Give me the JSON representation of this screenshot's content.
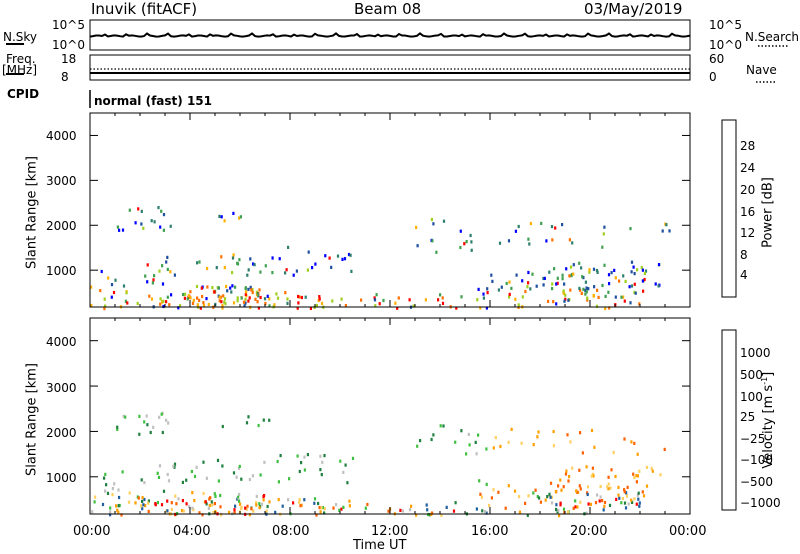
{
  "header": {
    "station": "Inuvik (fitACF)",
    "beam": "Beam 08",
    "date": "03/May/2019"
  },
  "summary": {
    "nsky_label": "N.Sky",
    "nsearch_label": "N.Search",
    "nsky_ticks": [
      "10^5",
      "10^0"
    ],
    "nsearch_ticks": [
      "10^5",
      "10^0"
    ],
    "freq_label": "Freq.",
    "freq_unit": "[MHz]",
    "freq_ticks": [
      "18",
      "8"
    ],
    "nave_label": "Nave",
    "nave_ticks": [
      "60",
      "0"
    ],
    "cpid_label": "CPID",
    "cpid_value": "normal (fast) 151"
  },
  "colors": {
    "power_scale": [
      "#0000ff",
      "#1f4f9f",
      "#2f7f6f",
      "#3fa04f",
      "#9fd020",
      "#ffb000",
      "#ff7000",
      "#ff0000"
    ],
    "velocity_scale": [
      "#ff0000",
      "#ff6000",
      "#ffa000",
      "#ffd060",
      "#c0c0c0",
      "#40c040",
      "#208040",
      "#2060a0",
      "#0000ff"
    ]
  },
  "chart_data": [
    {
      "type": "heatmap",
      "panel": "power",
      "ylabel": "Slant Range [km]",
      "yticks": [
        "1000",
        "2000",
        "3000",
        "4000"
      ],
      "ylim": [
        180,
        4500
      ],
      "xticks": [
        "00:00",
        "04:00",
        "08:00",
        "12:00",
        "16:00",
        "20:00",
        "00:00"
      ],
      "colorbar_label": "Power [dB]",
      "colorbar_ticks": [
        "4",
        "8",
        "12",
        "16",
        "20",
        "24",
        "28"
      ]
    },
    {
      "type": "heatmap",
      "panel": "velocity",
      "ylabel": "Slant Range [km]",
      "yticks": [
        "1000",
        "2000",
        "3000",
        "4000"
      ],
      "ylim": [
        180,
        4500
      ],
      "xticks": [
        "00:00",
        "04:00",
        "08:00",
        "12:00",
        "16:00",
        "20:00",
        "00:00"
      ],
      "xlabel": "Time UT",
      "colorbar_label": "Velocity [m s",
      "colorbar_label_sup": "-1",
      "colorbar_label_end": "]",
      "colorbar_ticks": [
        "1000",
        "500",
        "100",
        "25",
        "−25",
        "−100",
        "−500",
        "−1000"
      ]
    }
  ]
}
